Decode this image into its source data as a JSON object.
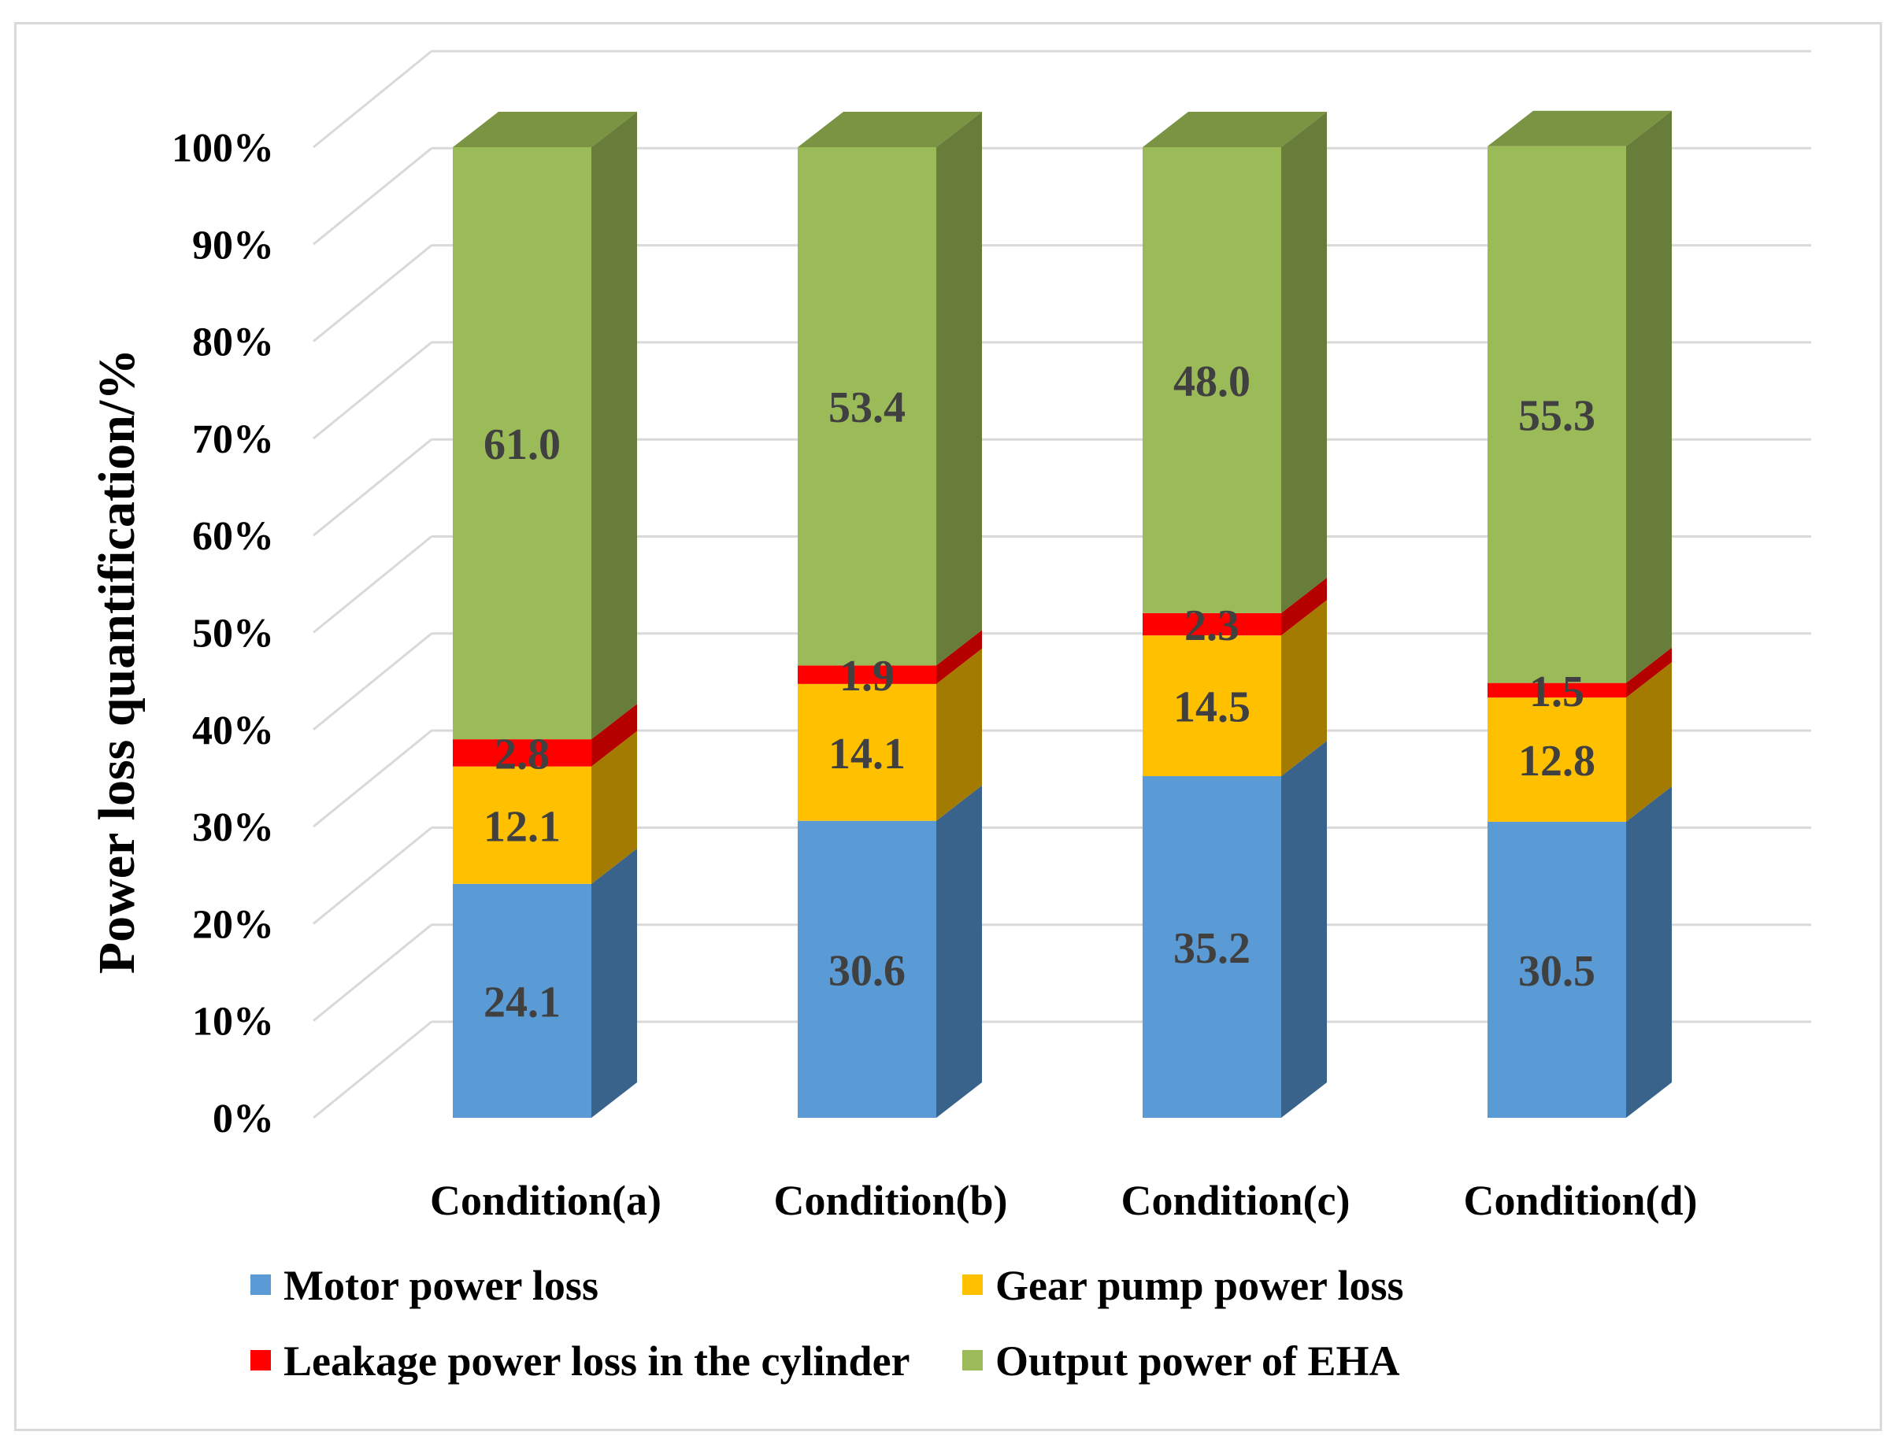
{
  "chart_data": {
    "type": "bar",
    "stacked": true,
    "three_d": true,
    "categories": [
      "Condition(a)",
      "Condition(b)",
      "Condition(c)",
      "Condition(d)"
    ],
    "series": [
      {
        "name": "Motor power loss",
        "values": [
          24.1,
          30.6,
          35.2,
          30.5
        ],
        "color": "#5b9bd5",
        "side_color": "#3a638b"
      },
      {
        "name": "Gear pump power loss",
        "values": [
          12.1,
          14.1,
          14.5,
          12.8
        ],
        "color": "#ffc000",
        "side_color": "#a37b00"
      },
      {
        "name": "Leakage power loss in the cylinder",
        "values": [
          2.8,
          1.9,
          2.3,
          1.5
        ],
        "color": "#ff0000",
        "side_color": "#b50000"
      },
      {
        "name": "Output power of EHA",
        "values": [
          61.0,
          53.4,
          48.0,
          55.3
        ],
        "color": "#9bbb59",
        "side_color": "#677d39",
        "top_color": "#7a9443"
      }
    ],
    "data_labels": [
      [
        "24.1",
        "30.6",
        "35.2",
        "30.5"
      ],
      [
        "12.1",
        "14.1",
        "14.5",
        "12.8"
      ],
      [
        "2.8",
        "1.9",
        "2.3",
        "1.5"
      ],
      [
        "61.0",
        "53.4",
        "48.0",
        "55.3"
      ]
    ],
    "ylabel": "Power loss quantification/%",
    "ylim": [
      0,
      100
    ],
    "yticks": [
      "0%",
      "10%",
      "20%",
      "30%",
      "40%",
      "50%",
      "60%",
      "70%",
      "80%",
      "90%",
      "100%"
    ],
    "grid": true,
    "legend_position": "bottom",
    "grid_color": "#d9d9d9"
  }
}
